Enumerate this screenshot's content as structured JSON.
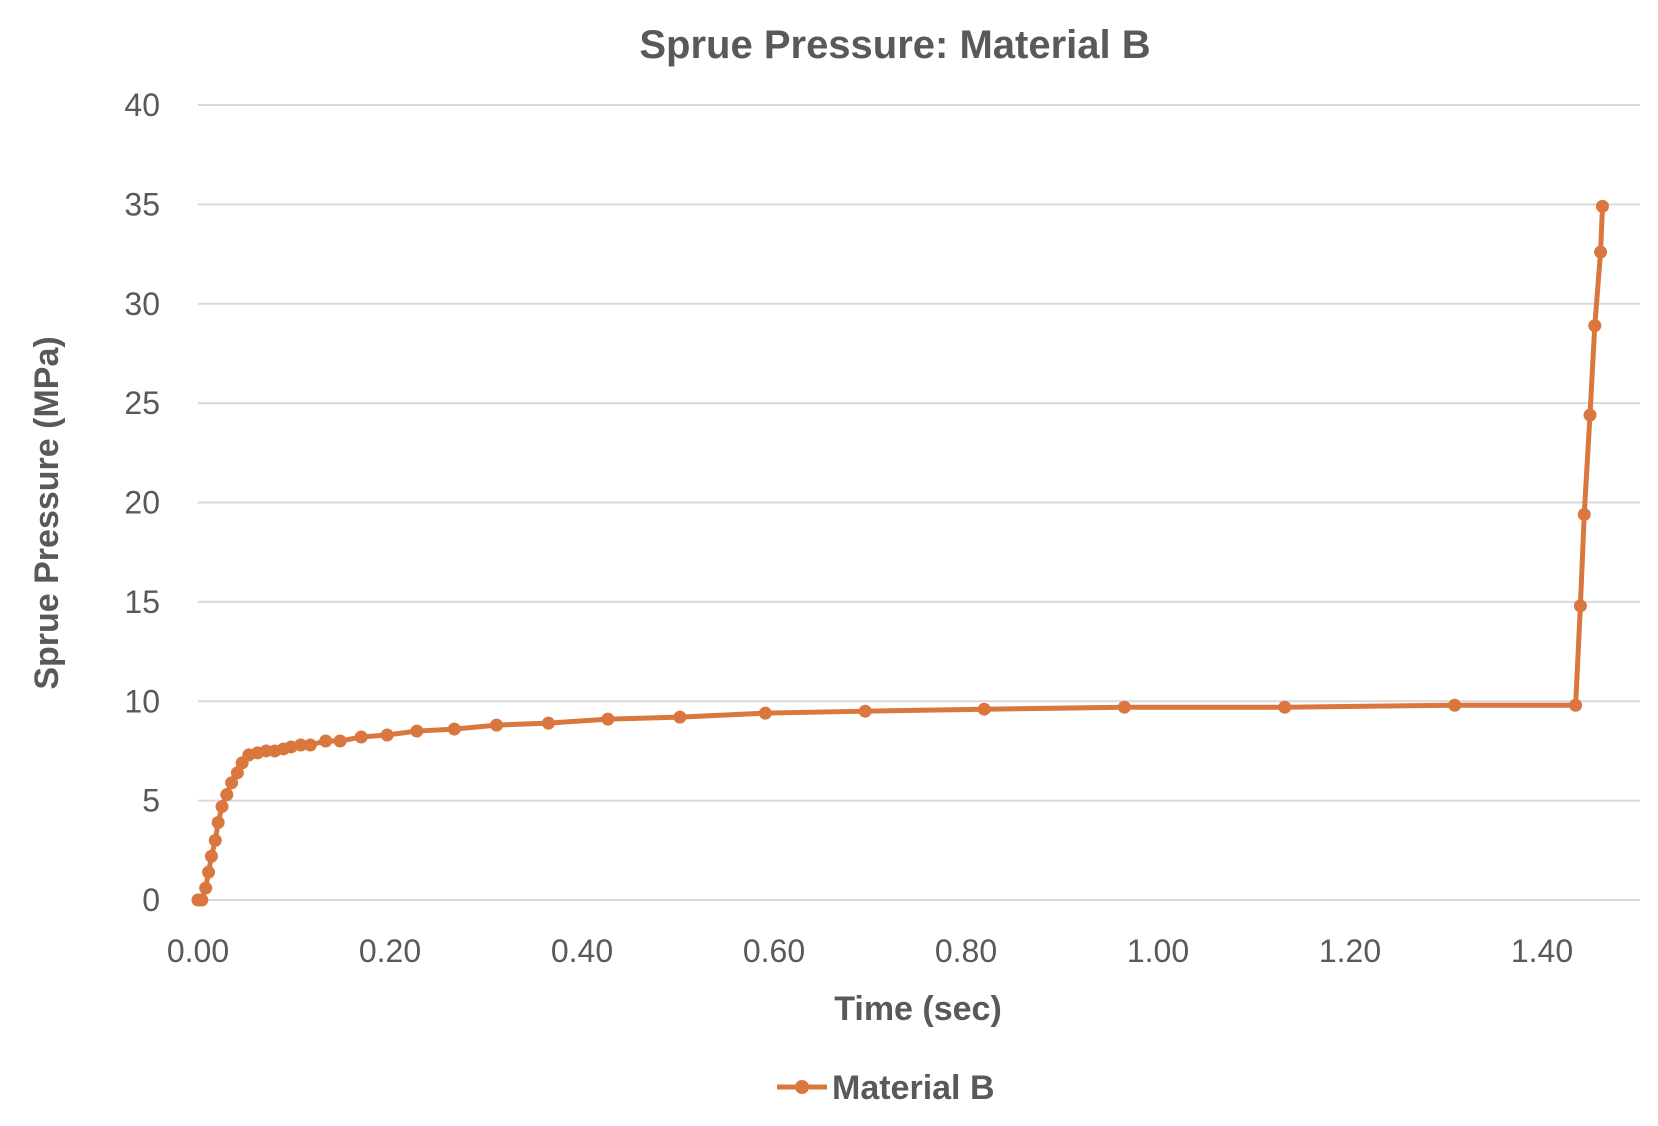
{
  "chart_data": {
    "type": "line",
    "title": "Sprue Pressure: Material B",
    "xlabel": "Time (sec)",
    "ylabel": "Sprue Pressure (MPa)",
    "xlim": [
      0,
      1.5
    ],
    "ylim": [
      0,
      40
    ],
    "xticks": [
      "0.00",
      "0.20",
      "0.40",
      "0.60",
      "0.80",
      "1.00",
      "1.20",
      "1.40"
    ],
    "yticks": [
      "0",
      "5",
      "10",
      "15",
      "20",
      "25",
      "30",
      "35",
      "40"
    ],
    "grid": "horizontal",
    "legend_position": "bottom",
    "color": "#D9773F",
    "series": [
      {
        "name": "Material B",
        "x": [
          0,
          0.004,
          0.008,
          0.011,
          0.014,
          0.018,
          0.021,
          0.025,
          0.03,
          0.035,
          0.041,
          0.046,
          0.053,
          0.062,
          0.071,
          0.08,
          0.089,
          0.097,
          0.107,
          0.117,
          0.133,
          0.148,
          0.17,
          0.197,
          0.228,
          0.267,
          0.311,
          0.365,
          0.427,
          0.502,
          0.591,
          0.695,
          0.819,
          0.965,
          1.132,
          1.309,
          1.435,
          1.44,
          1.444,
          1.45,
          1.455,
          1.461,
          1.463
        ],
        "y": [
          0,
          0,
          0.6,
          1.4,
          2.2,
          3.0,
          3.9,
          4.7,
          5.3,
          5.9,
          6.4,
          6.9,
          7.3,
          7.4,
          7.5,
          7.5,
          7.6,
          7.7,
          7.8,
          7.8,
          8.0,
          8.0,
          8.2,
          8.3,
          8.5,
          8.6,
          8.8,
          8.9,
          9.1,
          9.2,
          9.4,
          9.5,
          9.6,
          9.7,
          9.7,
          9.8,
          9.8,
          14.8,
          19.4,
          24.4,
          28.9,
          32.6,
          34.9
        ]
      }
    ]
  }
}
